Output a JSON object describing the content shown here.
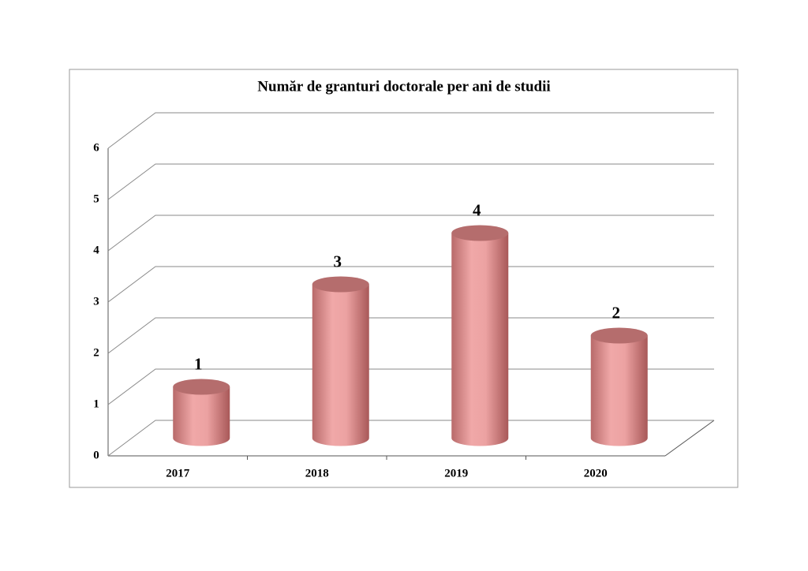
{
  "chart_data": {
    "type": "bar",
    "title": "Număr de granturi doctorale per ani de studii",
    "categories": [
      "2017",
      "2018",
      "2019",
      "2020"
    ],
    "values": [
      1,
      3,
      4,
      2
    ],
    "color": "#e59a9a",
    "ylim": [
      0,
      6
    ],
    "yticks": [
      0,
      1,
      2,
      3,
      4,
      5,
      6
    ],
    "grid": true
  }
}
